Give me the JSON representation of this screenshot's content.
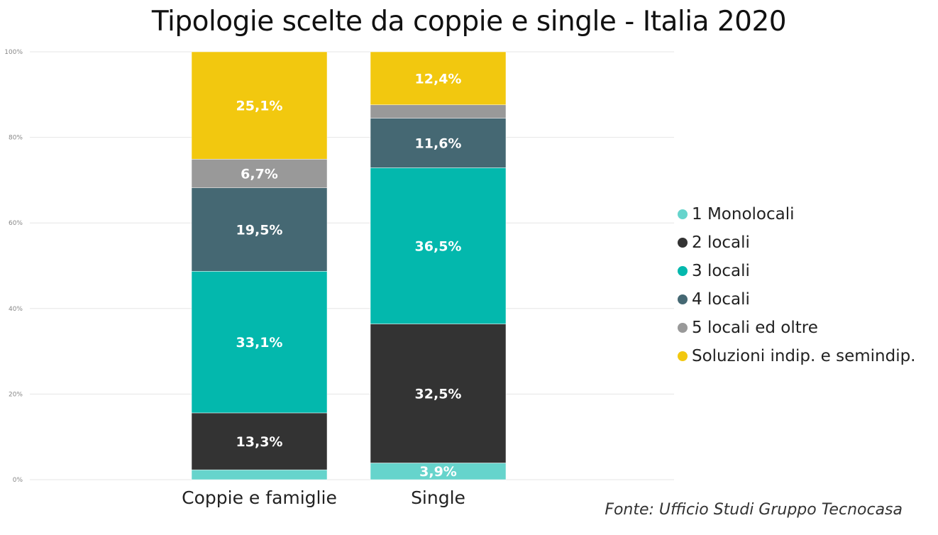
{
  "chart_data": {
    "type": "bar",
    "stacked": true,
    "title": "Tipologie scelte da coppie e single  - Italia 2020",
    "source": "Fonte: Ufficio Studi Gruppo Tecnocasa",
    "categories": [
      "Coppie e famiglie",
      "Single"
    ],
    "ylim": [
      0,
      100
    ],
    "yticks": [
      "0%",
      "20%",
      "40%",
      "60%",
      "80%",
      "100%"
    ],
    "ytick_values": [
      0,
      20,
      40,
      60,
      80,
      100
    ],
    "grid": true,
    "legend_position": "right",
    "series": [
      {
        "name": "1 Monolocali",
        "color": "#66D4CC",
        "values": [
          2.3,
          3.9
        ],
        "labels": [
          null,
          "3,9%"
        ]
      },
      {
        "name": "2 locali",
        "color": "#333333",
        "values": [
          13.3,
          32.5
        ],
        "labels": [
          "13,3%",
          "32,5%"
        ]
      },
      {
        "name": "3 locali",
        "color": "#03B8AD",
        "values": [
          33.1,
          36.5
        ],
        "labels": [
          "33,1%",
          "36,5%"
        ]
      },
      {
        "name": "4 locali",
        "color": "#456873",
        "values": [
          19.5,
          11.6
        ],
        "labels": [
          "19,5%",
          "11,6%"
        ]
      },
      {
        "name": "5 locali ed oltre",
        "color": "#999999",
        "values": [
          6.7,
          3.1
        ],
        "labels": [
          "6,7%",
          null
        ]
      },
      {
        "name": "Soluzioni indip. e semindip.",
        "color": "#F2C80F",
        "values": [
          25.1,
          12.4
        ],
        "labels": [
          "25,1%",
          "12,4%"
        ]
      }
    ]
  }
}
